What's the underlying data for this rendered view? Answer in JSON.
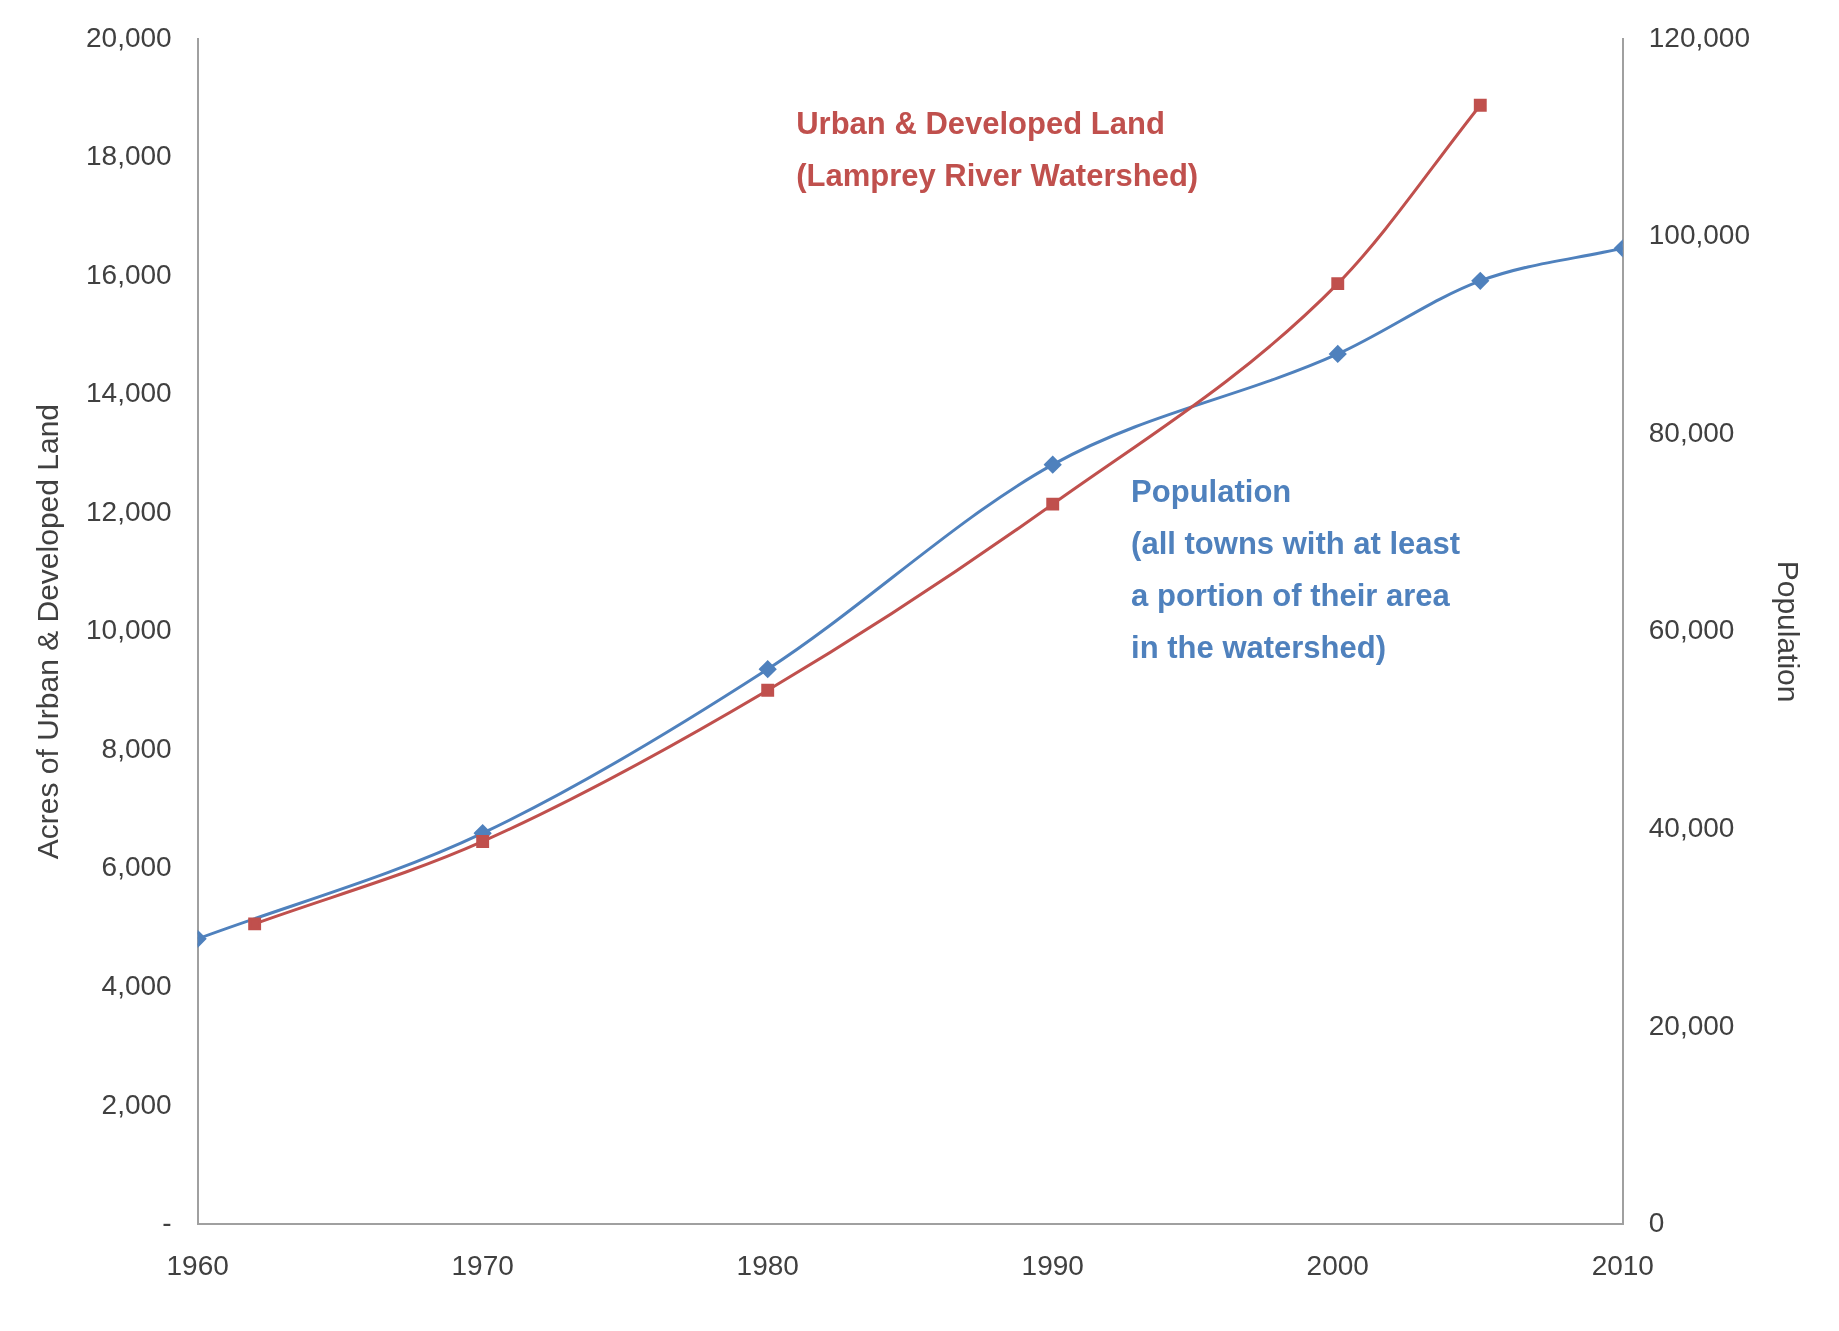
{
  "chart_data": {
    "type": "line",
    "ylabel": "Acres of Urban & Developed Land",
    "y2label": "Population",
    "xlim": [
      1960,
      2010
    ],
    "xticks": [
      1960,
      1970,
      1980,
      1990,
      2000,
      2010
    ],
    "ylim": [
      0,
      20000
    ],
    "yticks": [
      {
        "value": 0,
        "label": "-"
      },
      {
        "value": 2000,
        "label": "2,000"
      },
      {
        "value": 4000,
        "label": "4,000"
      },
      {
        "value": 6000,
        "label": "6,000"
      },
      {
        "value": 8000,
        "label": "8,000"
      },
      {
        "value": 10000,
        "label": "10,000"
      },
      {
        "value": 12000,
        "label": "12,000"
      },
      {
        "value": 14000,
        "label": "14,000"
      },
      {
        "value": 16000,
        "label": "16,000"
      },
      {
        "value": 18000,
        "label": "18,000"
      },
      {
        "value": 20000,
        "label": "20,000"
      }
    ],
    "y2lim": [
      0,
      120000
    ],
    "y2ticks": [
      0,
      {
        "value": 20000,
        "label": "20,000"
      },
      {
        "value": 40000,
        "label": "40,000"
      },
      {
        "value": 60000,
        "label": "60,000"
      },
      {
        "value": 80000,
        "label": "80,000"
      },
      {
        "value": 100000,
        "label": "100,000"
      },
      {
        "value": 120000,
        "label": "120,000"
      }
    ],
    "grid": false,
    "legend": false,
    "series": [
      {
        "name": "Urban & Developed Land\n(Lamprey River Watershed)",
        "color": "#c0504d",
        "marker": "square",
        "x": [
          1962,
          1970,
          1980,
          1990,
          2000,
          2005
        ],
        "values": [
          5070,
          6460,
          9010,
          12150,
          15870,
          18880
        ]
      },
      {
        "name": "Population\n(all towns with at least\na portion of their area\nin the watershed)",
        "color": "#4f81bd",
        "marker": "diamond",
        "axis": "y2",
        "x": [
          1960,
          1970,
          1980,
          1990,
          2000,
          2005,
          2010
        ],
        "values": [
          28900,
          39600,
          56200,
          76900,
          88100,
          95500,
          98800
        ]
      }
    ]
  }
}
